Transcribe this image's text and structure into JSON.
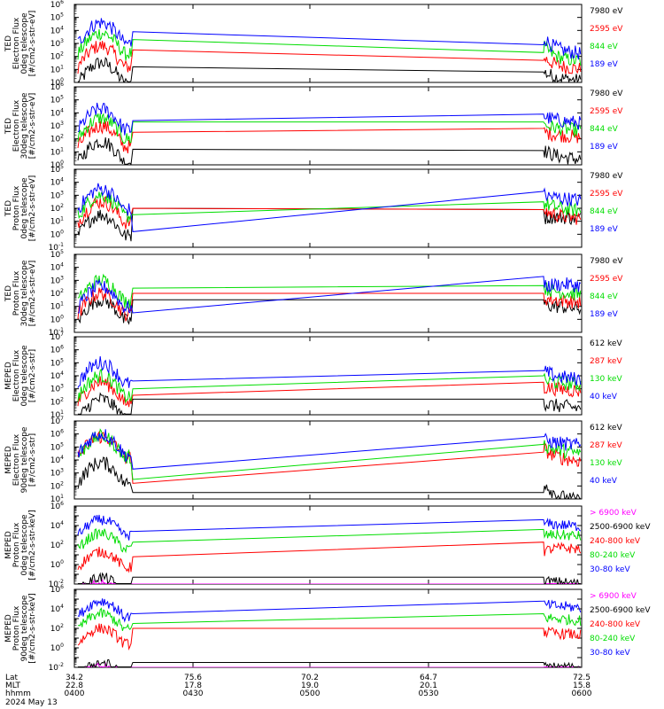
{
  "footer": {
    "row_labels": [
      "Lat",
      "MLT",
      "hhmm",
      "2024 May 13"
    ],
    "ticks": [
      {
        "lat": "34.2",
        "mlt": "22.8",
        "hhmm": "0400"
      },
      {
        "lat": "75.6",
        "mlt": "17.8",
        "hhmm": "0430"
      },
      {
        "lat": "70.2",
        "mlt": "19.0",
        "hhmm": "0500"
      },
      {
        "lat": "64.7",
        "mlt": "20.1",
        "hhmm": "0530"
      },
      {
        "lat": "72.5",
        "mlt": "15.8",
        "hhmm": "0600"
      }
    ]
  },
  "colors": {
    "black": "#000000",
    "red": "#ff0000",
    "green": "#00dd00",
    "blue": "#0000ff",
    "magenta": "#ff00ff"
  },
  "chart_data": [
    {
      "type": "line",
      "ylabel": [
        "TED",
        "Electron Flux",
        "0deg telescope",
        "[#/cm2-s-str-eV]"
      ],
      "ylim_exp": [
        0,
        6
      ],
      "x": [
        "0400",
        "0600"
      ],
      "series": [
        {
          "name": "7980 eV",
          "color": "black",
          "values": [
            [
              10,
              1.5
            ],
            [
              52,
              1.2
            ],
            [
              30,
              0.8
            ]
          ]
        },
        {
          "name": "2595 eV",
          "color": "red",
          "values": [
            [
              10,
              2.8
            ],
            [
              52,
              2.5
            ],
            [
              30,
              1.7
            ]
          ]
        },
        {
          "name": "844 eV",
          "color": "green",
          "values": [
            [
              10,
              3.8
            ],
            [
              52,
              3.3
            ],
            [
              30,
              2.3
            ]
          ]
        },
        {
          "name": "189 eV",
          "color": "blue",
          "values": [
            [
              10,
              4.6
            ],
            [
              52,
              3.9
            ],
            [
              30,
              2.9
            ]
          ]
        }
      ]
    },
    {
      "type": "line",
      "ylabel": [
        "TED",
        "Electron Flux",
        "30deg telescope",
        "[#/cm2-s-str-eV]"
      ],
      "ylim_exp": [
        0,
        6
      ],
      "series": [
        {
          "name": "7980 eV",
          "color": "black",
          "values": [
            [
              10,
              1.8
            ],
            [
              52,
              1.2
            ],
            [
              10,
              1.1
            ]
          ]
        },
        {
          "name": "2595 eV",
          "color": "red",
          "values": [
            [
              10,
              3.0
            ],
            [
              52,
              2.5
            ],
            [
              10,
              2.8
            ]
          ]
        },
        {
          "name": "844 eV",
          "color": "green",
          "values": [
            [
              10,
              3.6
            ],
            [
              52,
              3.3
            ],
            [
              10,
              3.3
            ]
          ]
        },
        {
          "name": "189 eV",
          "color": "blue",
          "values": [
            [
              10,
              4.3
            ],
            [
              52,
              3.4
            ],
            [
              10,
              3.9
            ]
          ]
        }
      ]
    },
    {
      "type": "line",
      "ylabel": [
        "TED",
        "Proton Flux",
        "0deg telescope",
        "[#/cm2-s-str-eV]"
      ],
      "ylim_exp": [
        -1,
        5
      ],
      "series": [
        {
          "name": "7980 eV",
          "color": "black",
          "values": [
            [
              10,
              1.5
            ],
            [
              52,
              2.0
            ],
            [
              30,
              1.9
            ]
          ]
        },
        {
          "name": "2595 eV",
          "color": "red",
          "values": [
            [
              10,
              2.5
            ],
            [
              52,
              2.0
            ],
            [
              30,
              1.9
            ]
          ]
        },
        {
          "name": "844 eV",
          "color": "green",
          "values": [
            [
              10,
              3.0
            ],
            [
              52,
              1.5
            ],
            [
              30,
              2.5
            ]
          ]
        },
        {
          "name": "189 eV",
          "color": "blue",
          "values": [
            [
              10,
              3.5
            ],
            [
              52,
              0.2
            ],
            [
              30,
              3.3
            ]
          ]
        }
      ]
    },
    {
      "type": "line",
      "ylabel": [
        "TED",
        "Proton Flux",
        "30deg telescope",
        "[#/cm2-s-str-eV]"
      ],
      "ylim_exp": [
        -1,
        5
      ],
      "series": [
        {
          "name": "7980 eV",
          "color": "black",
          "values": [
            [
              10,
              1.5
            ],
            [
              52,
              1.5
            ],
            [
              30,
              1.5
            ]
          ]
        },
        {
          "name": "2595 eV",
          "color": "red",
          "values": [
            [
              10,
              2.0
            ],
            [
              52,
              2.0
            ],
            [
              30,
              2.0
            ]
          ]
        },
        {
          "name": "844 eV",
          "color": "green",
          "values": [
            [
              10,
              3.0
            ],
            [
              52,
              2.4
            ],
            [
              30,
              2.6
            ]
          ]
        },
        {
          "name": "189 eV",
          "color": "blue",
          "values": [
            [
              10,
              2.5
            ],
            [
              52,
              0.5
            ],
            [
              30,
              3.3
            ]
          ]
        }
      ]
    },
    {
      "type": "line",
      "ylabel": [
        "MEPED",
        "Electron Flux",
        "0deg telescope",
        "[#/cm2-s-str]"
      ],
      "ylim_exp": [
        1,
        7
      ],
      "series": [
        {
          "name": "612 keV",
          "color": "black",
          "values": [
            [
              10,
              2.2
            ],
            [
              52,
              2.2
            ],
            [
              30,
              2.2
            ]
          ]
        },
        {
          "name": "287 keV",
          "color": "red",
          "values": [
            [
              10,
              3.5
            ],
            [
              52,
              2.5
            ],
            [
              30,
              3.5
            ]
          ]
        },
        {
          "name": "130 keV",
          "color": "green",
          "values": [
            [
              10,
              4.0
            ],
            [
              52,
              3.0
            ],
            [
              30,
              4.0
            ]
          ]
        },
        {
          "name": "40 keV",
          "color": "blue",
          "values": [
            [
              10,
              5.0
            ],
            [
              52,
              3.6
            ],
            [
              30,
              4.4
            ]
          ]
        }
      ]
    },
    {
      "type": "line",
      "ylabel": [
        "MEPED",
        "Electron Flux",
        "90deg telescope",
        "[#/cm2-s-str]"
      ],
      "ylim_exp": [
        1,
        7
      ],
      "series": [
        {
          "name": "612 keV",
          "color": "black",
          "values": [
            [
              10,
              3.8
            ],
            [
              52,
              1.5
            ],
            [
              30,
              1.5
            ]
          ]
        },
        {
          "name": "287 keV",
          "color": "red",
          "values": [
            [
              10,
              5.8
            ],
            [
              52,
              2.2
            ],
            [
              30,
              4.6
            ]
          ]
        },
        {
          "name": "130 keV",
          "color": "green",
          "values": [
            [
              10,
              5.8
            ],
            [
              52,
              2.5
            ],
            [
              30,
              5.2
            ]
          ]
        },
        {
          "name": "40 keV",
          "color": "blue",
          "values": [
            [
              10,
              6.0
            ],
            [
              52,
              3.3
            ],
            [
              30,
              5.8
            ]
          ]
        }
      ]
    },
    {
      "type": "line",
      "ylabel": [
        "MEPED",
        "Proton Flux",
        "0deg telescope",
        "[#/cm2-s-str-keV]"
      ],
      "ylim_exp": [
        -2,
        6
      ],
      "series": [
        {
          "name": "> 6900 keV",
          "color": "magenta",
          "values": [
            [
              10,
              -2
            ],
            [
              52,
              -2
            ],
            [
              30,
              -2
            ]
          ]
        },
        {
          "name": "2500-6900 keV",
          "color": "black",
          "values": [
            [
              10,
              -1.3
            ],
            [
              52,
              -1.3
            ],
            [
              30,
              -1.3
            ]
          ]
        },
        {
          "name": "240-800 keV",
          "color": "red",
          "values": [
            [
              10,
              1.3
            ],
            [
              52,
              0.8
            ],
            [
              30,
              2.3
            ]
          ]
        },
        {
          "name": "80-240 keV",
          "color": "green",
          "values": [
            [
              10,
              3.2
            ],
            [
              52,
              2.3
            ],
            [
              30,
              3.6
            ]
          ]
        },
        {
          "name": "30-80 keV",
          "color": "blue",
          "values": [
            [
              10,
              4.6
            ],
            [
              52,
              3.4
            ],
            [
              30,
              4.6
            ]
          ]
        }
      ]
    },
    {
      "type": "line",
      "ylabel": [
        "MEPED",
        "Proton Flux",
        "90deg telescope",
        "[#/cm2-s-str-keV]"
      ],
      "ylim_exp": [
        -2,
        6
      ],
      "series": [
        {
          "name": "> 6900 keV",
          "color": "magenta",
          "values": [
            [
              10,
              -2
            ],
            [
              52,
              -2
            ],
            [
              30,
              -2
            ]
          ]
        },
        {
          "name": "2500-6900 keV",
          "color": "black",
          "values": [
            [
              10,
              -1.5
            ],
            [
              52,
              -1.5
            ],
            [
              30,
              -1.5
            ]
          ]
        },
        {
          "name": "240-800 keV",
          "color": "red",
          "values": [
            [
              10,
              2.0
            ],
            [
              52,
              2.0
            ],
            [
              30,
              2.0
            ]
          ]
        },
        {
          "name": "80-240 keV",
          "color": "green",
          "values": [
            [
              10,
              3.5
            ],
            [
              52,
              2.5
            ],
            [
              30,
              3.5
            ]
          ]
        },
        {
          "name": "30-80 keV",
          "color": "blue",
          "values": [
            [
              10,
              4.8
            ],
            [
              52,
              3.5
            ],
            [
              30,
              4.8
            ]
          ]
        }
      ]
    }
  ]
}
